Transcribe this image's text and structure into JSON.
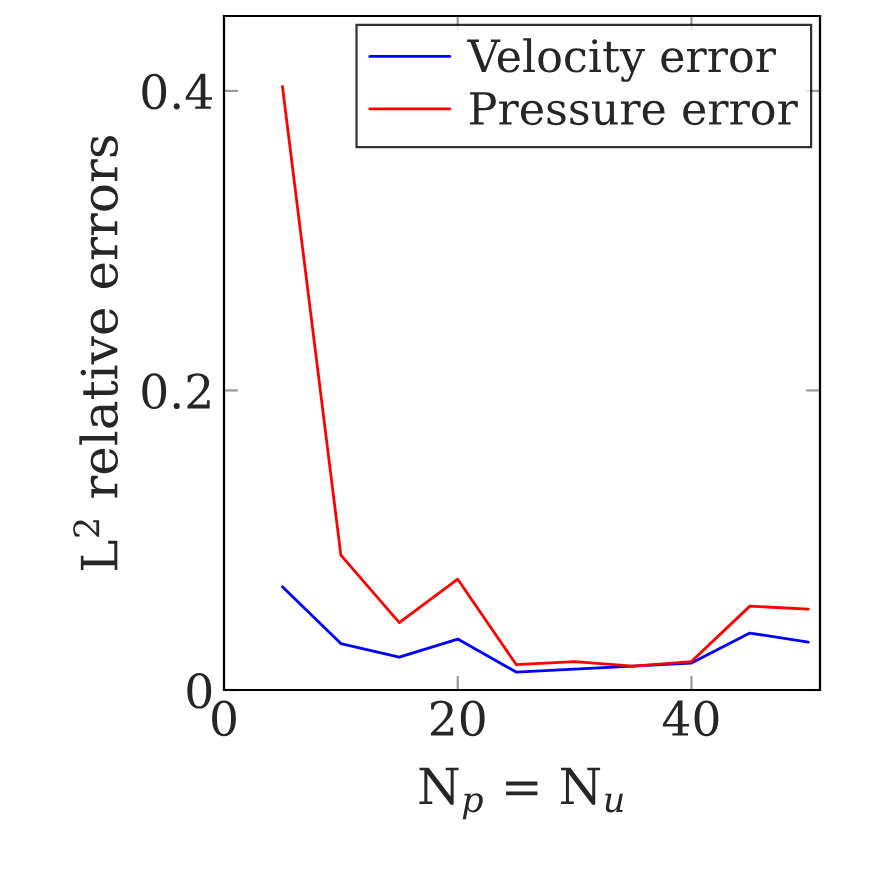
{
  "chart_data": {
    "type": "line",
    "xlabel": "N$_{p}$ = N$_{u}$",
    "ylabel": "L$^{2}$ relative errors",
    "x": [
      5,
      10,
      15,
      20,
      25,
      30,
      35,
      40,
      45,
      50
    ],
    "series": [
      {
        "name": "Velocity error",
        "color": "#0000ff",
        "values": [
          0.069,
          0.031,
          0.022,
          0.034,
          0.012,
          0.014,
          0.016,
          0.018,
          0.038,
          0.032
        ]
      },
      {
        "name": "Pressure error",
        "color": "#ff0000",
        "values": [
          0.403,
          0.09,
          0.045,
          0.074,
          0.017,
          0.019,
          0.016,
          0.019,
          0.056,
          0.054
        ]
      }
    ],
    "xlim": [
      0,
      51
    ],
    "ylim": [
      0,
      0.45
    ],
    "xticks": [
      0,
      20,
      40
    ],
    "yticks": [
      0,
      0.2,
      0.4
    ],
    "legend": "top right",
    "grid": false,
    "marker": "none",
    "line_style": "solid"
  }
}
